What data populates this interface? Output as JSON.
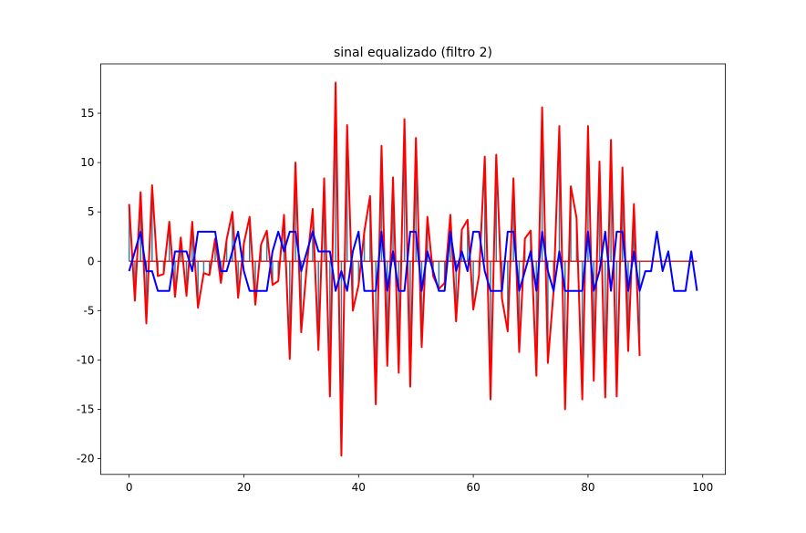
{
  "chart_data": {
    "type": "line",
    "title": "sinal equalizado (filtro 2)",
    "x": [
      0,
      1,
      2,
      3,
      4,
      5,
      6,
      7,
      8,
      9,
      10,
      11,
      12,
      13,
      14,
      15,
      16,
      17,
      18,
      19,
      20,
      21,
      22,
      23,
      24,
      25,
      26,
      27,
      28,
      29,
      30,
      31,
      32,
      33,
      34,
      35,
      36,
      37,
      38,
      39,
      40,
      41,
      42,
      43,
      44,
      45,
      46,
      47,
      48,
      49,
      50,
      51,
      52,
      53,
      54,
      55,
      56,
      57,
      58,
      59,
      60,
      61,
      62,
      63,
      64,
      65,
      66,
      67,
      68,
      69,
      70,
      71,
      72,
      73,
      74,
      75,
      76,
      77,
      78,
      79,
      80,
      81,
      82,
      83,
      84,
      85,
      86,
      87,
      88,
      89,
      90,
      91,
      92,
      93,
      94,
      95,
      96,
      97,
      98,
      99
    ],
    "series": [
      {
        "color": "#ff0000",
        "values": [
          5.8,
          -4,
          7,
          -6.3,
          7.7,
          -1.5,
          -1.3,
          4,
          -3.6,
          2.4,
          -3.5,
          4,
          -4.7,
          -1.2,
          -1.4,
          2.3,
          -2.2,
          2.2,
          5,
          -3.7,
          1.8,
          4.5,
          -4.4,
          1.7,
          3.1,
          -2.4,
          -2,
          4.7,
          -9.9,
          10,
          -7.2,
          -0.3,
          5.3,
          -9,
          8.4,
          -13.7,
          18.1,
          -19.7,
          13.8,
          -5,
          -2.4,
          3,
          6.6,
          -14.5,
          11.7,
          -10.6,
          8.5,
          -11.3,
          14.4,
          -12.7,
          12.5,
          -8.7,
          4.5,
          -1.5,
          -2.8,
          -2.2,
          4.7,
          -6.1,
          3.2,
          4.2,
          -4.9,
          -1.4,
          10.6,
          -14,
          10.8,
          -3.8,
          -7.1,
          8.4,
          -9.2,
          2.3,
          3.1,
          -11.6,
          15.6,
          -10.3,
          -3,
          13.7,
          -15,
          7.6,
          4.4,
          -14,
          13.7,
          -12.1,
          10.1,
          -13.8,
          12.3,
          -13.7,
          9.5,
          -9.1,
          5.8,
          -9.6,
          null,
          null,
          null,
          null,
          null,
          null,
          null,
          null,
          null,
          null
        ]
      },
      {
        "color": "#0000ff",
        "values": [
          -1,
          1,
          3,
          -1,
          -1,
          -3,
          -3,
          -3,
          1,
          1,
          1,
          -1,
          3,
          3,
          3,
          3,
          -1,
          -1,
          1,
          3,
          -1,
          -3,
          -3,
          -3,
          -3,
          1,
          3,
          1,
          3,
          3,
          -1,
          1,
          3,
          1,
          1,
          1,
          -3,
          -1,
          -3,
          1,
          3,
          -3,
          -3,
          -3,
          3,
          -3,
          1,
          -3,
          -3,
          3,
          3,
          -3,
          1,
          -1,
          -3,
          -3,
          3,
          -1,
          1,
          -1,
          3,
          3,
          -1,
          -3,
          -3,
          -3,
          3,
          3,
          -3,
          -1,
          1,
          -3,
          3,
          -1,
          -3,
          1,
          -3,
          -3,
          -3,
          -3,
          3,
          -3,
          -1,
          3,
          -3,
          3,
          3,
          -3,
          1,
          -3,
          -1,
          -1,
          3,
          -1,
          1,
          -3,
          -3,
          -3,
          1,
          -3
        ]
      }
    ],
    "stem_color": "#3a7f9e",
    "baseline_color": "#d62728",
    "xlim": [
      -4.95,
      103.95
    ],
    "xticks": [
      0,
      20,
      40,
      60,
      80,
      100
    ],
    "ylim": [
      -21.6,
      20.0
    ],
    "yticks": [
      -20,
      -15,
      -10,
      -5,
      0,
      5,
      10,
      15
    ]
  }
}
